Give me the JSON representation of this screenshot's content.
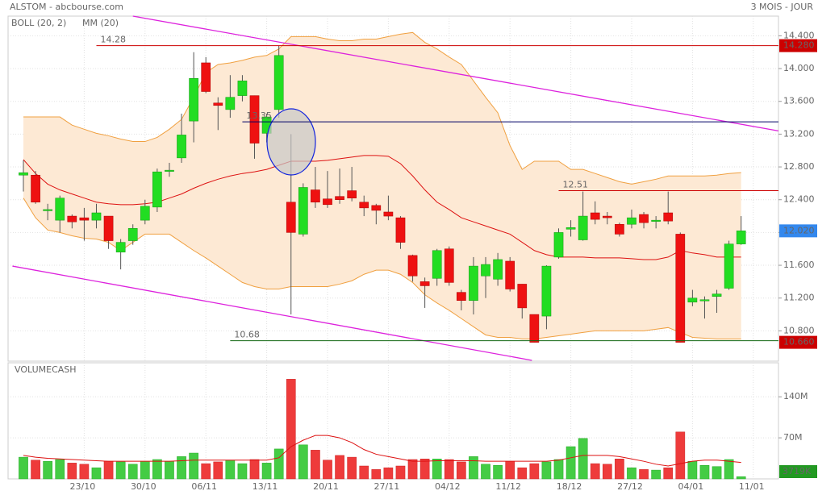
{
  "chart_data": {
    "type": "candlestick",
    "title": "ALSTOM - abcbourse.com",
    "period": "3 MOIS - JOUR",
    "xlim": [
      -1.26,
      62.07
    ],
    "xticks": [
      {
        "value": 5,
        "label": "23/10"
      },
      {
        "value": 10,
        "label": "30/10"
      },
      {
        "value": 15,
        "label": "06/11"
      },
      {
        "value": 20,
        "label": "13/11"
      },
      {
        "value": 25,
        "label": "20/11"
      },
      {
        "value": 30,
        "label": "27/11"
      },
      {
        "value": 35,
        "label": "04/12"
      },
      {
        "value": 40,
        "label": "11/12"
      },
      {
        "value": 45,
        "label": "18/12"
      },
      {
        "value": 50,
        "label": "27/12"
      },
      {
        "value": 55,
        "label": "04/01"
      },
      {
        "value": 60,
        "label": "11/01"
      }
    ],
    "ylim": [
      10.43,
      14.64
    ],
    "yticks": [
      {
        "value": 10.8,
        "label": "10.800"
      },
      {
        "value": 11.2,
        "label": "11.200"
      },
      {
        "value": 11.6,
        "label": "11.600"
      },
      {
        "value": 12,
        "label": "12.000"
      },
      {
        "value": 12.4,
        "label": "12.400"
      },
      {
        "value": 12.8,
        "label": "12.800"
      },
      {
        "value": 13.2,
        "label": "13.200"
      },
      {
        "value": 13.6,
        "label": "13.600"
      },
      {
        "value": 14,
        "label": "14.000"
      },
      {
        "value": 14.4,
        "label": "14.400"
      }
    ],
    "grid": true,
    "up_color": "#22dd22",
    "down_color": "#ee1111",
    "candles": {
      "open": [
        12.7,
        12.7,
        12.28,
        12.15,
        12.2,
        12.18,
        12.15,
        12.2,
        11.76,
        11.9,
        12.15,
        12.31,
        12.75,
        12.91,
        13.36,
        14.07,
        13.58,
        13.5,
        13.67,
        13.67,
        13.21,
        13.5,
        12.37,
        11.98,
        12.52,
        12.41,
        12.44,
        12.51,
        12.37,
        12.33,
        12.25,
        12.18,
        11.72,
        11.4,
        11.44,
        11.8,
        11.27,
        11.17,
        11.47,
        11.43,
        11.65,
        11.37,
        11.0,
        10.98,
        11.7,
        12.04,
        11.91,
        12.24,
        12.2,
        12.1,
        12.1,
        12.22,
        12.14,
        12.24,
        11.98,
        11.15,
        11.18,
        11.22,
        11.32,
        11.86
      ],
      "high": [
        12.88,
        12.75,
        12.35,
        12.45,
        12.22,
        12.3,
        12.35,
        12.2,
        11.92,
        12.1,
        12.4,
        12.78,
        12.85,
        13.45,
        14.2,
        14.14,
        13.65,
        13.92,
        13.92,
        13.67,
        13.45,
        14.28,
        13.2,
        12.6,
        12.8,
        12.75,
        12.78,
        12.8,
        12.45,
        12.35,
        12.45,
        12.2,
        11.73,
        11.45,
        11.8,
        11.83,
        11.3,
        11.7,
        11.7,
        11.75,
        11.7,
        11.37,
        11.0,
        11.6,
        12.05,
        12.15,
        12.5,
        12.38,
        12.25,
        12.12,
        12.28,
        12.25,
        12.2,
        12.5,
        12.0,
        11.3,
        11.22,
        11.3,
        11.9,
        12.2
      ],
      "low": [
        12.5,
        12.35,
        12.15,
        12.0,
        12.05,
        11.9,
        12.05,
        11.8,
        11.55,
        11.85,
        12.1,
        12.25,
        12.68,
        12.85,
        13.1,
        13.7,
        13.25,
        13.4,
        13.6,
        12.9,
        13.1,
        13.4,
        11.0,
        11.95,
        12.3,
        12.3,
        12.35,
        12.38,
        12.2,
        12.1,
        12.15,
        11.8,
        11.4,
        11.08,
        11.35,
        11.35,
        11.05,
        11.0,
        11.2,
        11.35,
        11.28,
        10.95,
        10.66,
        10.82,
        11.68,
        11.95,
        11.9,
        12.1,
        12.1,
        11.95,
        12.05,
        12.05,
        12.05,
        12.1,
        10.66,
        11.1,
        10.95,
        11.02,
        11.3,
        11.85
      ],
      "close": [
        12.73,
        12.37,
        12.28,
        12.42,
        12.13,
        12.15,
        12.24,
        11.9,
        11.88,
        12.05,
        12.32,
        12.74,
        12.76,
        13.19,
        13.88,
        13.72,
        13.55,
        13.65,
        13.85,
        13.09,
        13.41,
        14.16,
        12.0,
        12.55,
        12.37,
        12.34,
        12.4,
        12.42,
        12.3,
        12.27,
        12.2,
        11.88,
        11.47,
        11.35,
        11.78,
        11.39,
        11.17,
        11.59,
        11.61,
        11.67,
        11.31,
        11.08,
        10.66,
        11.59,
        12.0,
        12.06,
        12.2,
        12.16,
        12.18,
        11.98,
        12.18,
        12.12,
        12.15,
        12.14,
        10.66,
        11.2,
        11.18,
        11.25,
        11.86,
        12.02
      ]
    },
    "bollinger": {
      "name": "BOLL (20, 2)",
      "color": "#f0a040",
      "fill": "#fde9d4",
      "upper": [
        13.41,
        13.41,
        13.41,
        13.41,
        13.31,
        13.26,
        13.21,
        13.18,
        13.14,
        13.11,
        13.11,
        13.16,
        13.26,
        13.38,
        13.65,
        13.95,
        14.05,
        14.07,
        14.1,
        14.14,
        14.16,
        14.24,
        14.39,
        14.39,
        14.39,
        14.36,
        14.34,
        14.34,
        14.36,
        14.36,
        14.39,
        14.42,
        14.44,
        14.32,
        14.24,
        14.14,
        14.05,
        13.85,
        13.65,
        13.46,
        13.06,
        12.77,
        12.87,
        12.87,
        12.87,
        12.77,
        12.77,
        12.72,
        12.67,
        12.62,
        12.59,
        12.62,
        12.65,
        12.69,
        12.69,
        12.69,
        12.69,
        12.7,
        12.72,
        12.73
      ],
      "lower": [
        12.42,
        12.18,
        12.03,
        12.0,
        11.96,
        11.93,
        11.92,
        11.88,
        11.78,
        11.88,
        11.98,
        11.98,
        11.98,
        11.88,
        11.78,
        11.69,
        11.59,
        11.49,
        11.39,
        11.34,
        11.31,
        11.31,
        11.34,
        11.34,
        11.34,
        11.34,
        11.37,
        11.41,
        11.49,
        11.54,
        11.54,
        11.49,
        11.39,
        11.24,
        11.14,
        11.05,
        10.95,
        10.85,
        10.75,
        10.72,
        10.72,
        10.7,
        10.7,
        10.72,
        10.74,
        10.76,
        10.78,
        10.8,
        10.8,
        10.8,
        10.8,
        10.8,
        10.82,
        10.84,
        10.78,
        10.72,
        10.71,
        10.7,
        10.7,
        10.7
      ]
    },
    "ma": {
      "name": "MM (20)",
      "color": "#dd1111",
      "values": [
        12.89,
        12.72,
        12.59,
        12.52,
        12.47,
        12.42,
        12.37,
        12.35,
        12.34,
        12.34,
        12.35,
        12.37,
        12.42,
        12.47,
        12.54,
        12.6,
        12.65,
        12.69,
        12.72,
        12.74,
        12.77,
        12.82,
        12.87,
        12.87,
        12.87,
        12.88,
        12.9,
        12.92,
        12.94,
        12.94,
        12.93,
        12.84,
        12.69,
        12.52,
        12.37,
        12.28,
        12.18,
        12.13,
        12.08,
        12.03,
        11.98,
        11.88,
        11.78,
        11.73,
        11.7,
        11.7,
        11.7,
        11.69,
        11.69,
        11.69,
        11.68,
        11.67,
        11.67,
        11.7,
        11.78,
        11.75,
        11.73,
        11.7,
        11.7,
        11.7
      ]
    },
    "levels": [
      {
        "value": 14.28,
        "label": "14.28",
        "color": "#cc0000",
        "label_color": "#cc0000"
      },
      {
        "value": 13.35,
        "label": "13.35",
        "color": "#000066",
        "label_color": "#2222cc"
      },
      {
        "value": 12.51,
        "label": "12.51",
        "color": "#cc0000",
        "label_color": "#cc0000"
      },
      {
        "value": 10.68,
        "label": "10.68",
        "color": "#116611",
        "label_color": "#333333"
      }
    ],
    "trendlines": [
      {
        "x": [
          9,
          62.07
        ],
        "y": [
          14.64,
          13.24
        ],
        "color": "#dd22dd"
      },
      {
        "x": [
          -0.9,
          41.8
        ],
        "y": [
          11.59,
          10.44
        ],
        "color": "#dd22dd"
      }
    ],
    "price_tags": [
      {
        "value": 14.28,
        "label": "14.280",
        "color": "#cc0000"
      },
      {
        "value": 12.02,
        "label": "12.020",
        "color": "#3388ee"
      },
      {
        "value": 10.66,
        "label": "10.660",
        "color": "#cc0000"
      }
    ],
    "volume": {
      "name": "VOLUMECASH",
      "name_color": "#33aa33",
      "ylim": [
        0,
        198
      ],
      "yticks": [
        {
          "value": 70,
          "label": "70M"
        },
        {
          "value": 140,
          "label": "140M"
        }
      ],
      "values": [
        37,
        32,
        30,
        33,
        27,
        25,
        19,
        30,
        29,
        25,
        30,
        33,
        30,
        38,
        44,
        26,
        29,
        32,
        26,
        33,
        27,
        51,
        170,
        58,
        49,
        32,
        40,
        37,
        22,
        16,
        19,
        22,
        33,
        34,
        34,
        33,
        29,
        38,
        25,
        23,
        30,
        19,
        26,
        29,
        33,
        55,
        69,
        26,
        25,
        34,
        19,
        16,
        15,
        19,
        80,
        30,
        23,
        21,
        33,
        3.719
      ],
      "last_label": "3719K",
      "tag_color": "#229922",
      "ma_color": "#dd1111",
      "ma": [
        40,
        37,
        35,
        34,
        33,
        32,
        31,
        30,
        30,
        30,
        30,
        30,
        30,
        31,
        32,
        32,
        32,
        32,
        32,
        32,
        32,
        36,
        55,
        66,
        74,
        74,
        70,
        62,
        50,
        42,
        38,
        34,
        30,
        30,
        31,
        31,
        31,
        31,
        30,
        30,
        30,
        30,
        30,
        30,
        32,
        36,
        40,
        40,
        40,
        38,
        34,
        30,
        25,
        22,
        26,
        30,
        32,
        32,
        30,
        28
      ]
    }
  }
}
